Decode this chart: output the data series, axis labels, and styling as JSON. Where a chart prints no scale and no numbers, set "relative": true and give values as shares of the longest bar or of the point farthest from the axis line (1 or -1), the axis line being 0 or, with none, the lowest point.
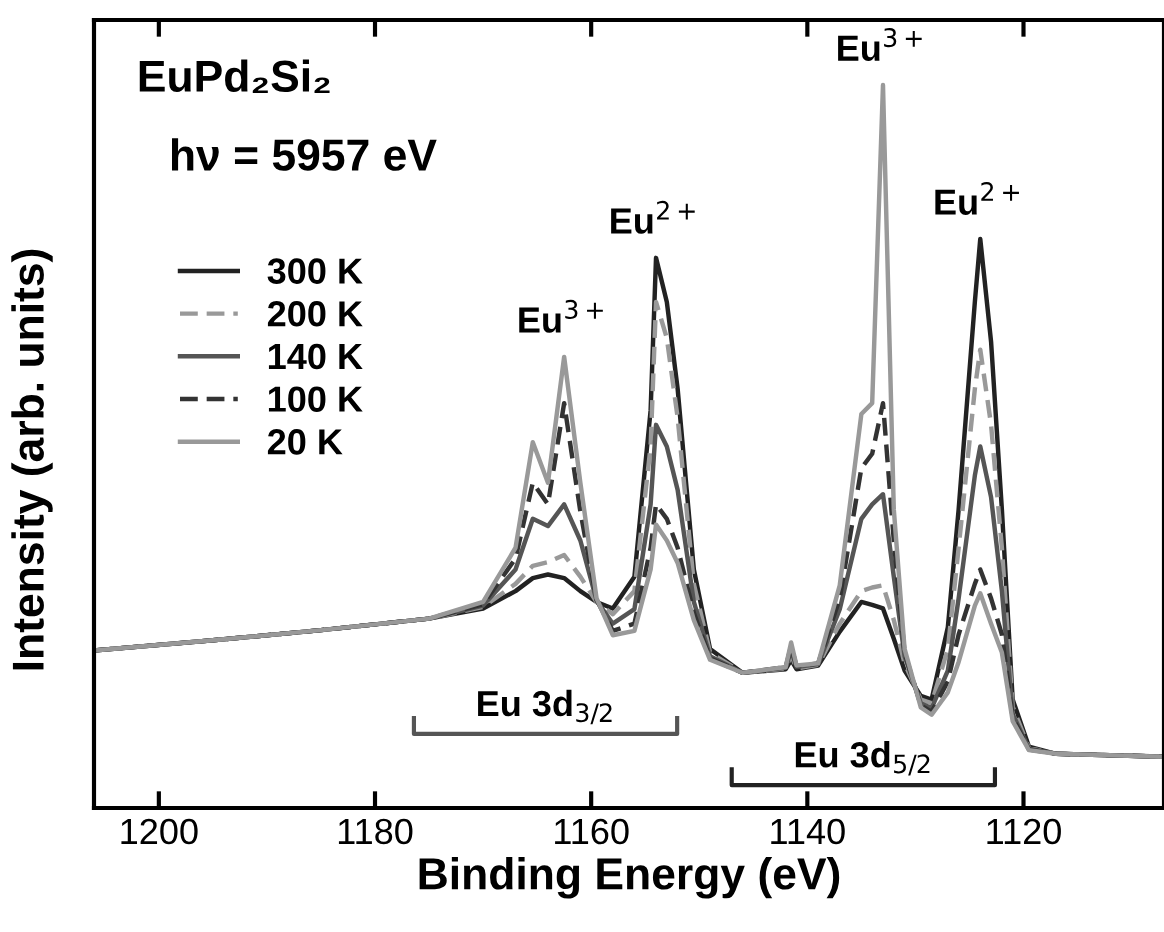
{
  "chart_data": {
    "type": "line",
    "title": "EuPd₂Si₂",
    "subtitle": "hν = 5957 eV",
    "xlabel": "Binding Energy (eV)",
    "ylabel": "Intensity (arb. units)",
    "relative": true,
    "xlim": [
      1206,
      1107
    ],
    "xticks": [
      1200,
      1180,
      1160,
      1140,
      1120
    ],
    "grid": false,
    "legend": "top left",
    "marker": "none",
    "x": [
      1206,
      1195,
      1185,
      1175,
      1170,
      1167,
      1165.4,
      1164,
      1162.5,
      1161,
      1159.5,
      1158,
      1156,
      1154.5,
      1154,
      1153,
      1152,
      1150.5,
      1149,
      1146,
      1142,
      1141.5,
      1141,
      1139,
      1137,
      1135,
      1134,
      1133,
      1132,
      1131,
      1129.5,
      1128.5,
      1127,
      1126,
      1124.5,
      1124,
      1123,
      1122,
      1121,
      1119.5,
      1117,
      1112,
      1107
    ],
    "series": [
      {
        "name": "300 K",
        "color": "#222222",
        "line_style": "solid",
        "values": [
          0.218,
          0.232,
          0.246,
          0.262,
          0.276,
          0.3,
          0.318,
          0.323,
          0.318,
          0.3,
          0.285,
          0.276,
          0.32,
          0.55,
          0.761,
          0.7,
          0.58,
          0.33,
          0.22,
          0.187,
          0.192,
          0.205,
          0.192,
          0.197,
          0.244,
          0.285,
          0.281,
          0.276,
          0.234,
          0.19,
          0.155,
          0.15,
          0.25,
          0.413,
          0.7,
          0.787,
          0.645,
          0.413,
          0.15,
          0.085,
          0.075,
          0.073,
          0.071
        ]
      },
      {
        "name": "200 K",
        "color": "#999999",
        "line_style": "dashed",
        "values": [
          0.218,
          0.232,
          0.246,
          0.262,
          0.278,
          0.31,
          0.335,
          0.34,
          0.35,
          0.32,
          0.285,
          0.268,
          0.3,
          0.5,
          0.7,
          0.65,
          0.54,
          0.31,
          0.215,
          0.187,
          0.193,
          0.212,
          0.193,
          0.198,
          0.255,
          0.3,
          0.305,
          0.308,
          0.26,
          0.2,
          0.15,
          0.145,
          0.22,
          0.36,
          0.58,
          0.634,
          0.53,
          0.36,
          0.14,
          0.083,
          0.075,
          0.073,
          0.071
        ]
      },
      {
        "name": "140 K",
        "color": "#555555",
        "line_style": "solid",
        "values": [
          0.218,
          0.232,
          0.246,
          0.262,
          0.28,
          0.33,
          0.4,
          0.39,
          0.42,
          0.37,
          0.287,
          0.255,
          0.275,
          0.42,
          0.53,
          0.5,
          0.44,
          0.285,
          0.21,
          0.187,
          0.194,
          0.218,
          0.195,
          0.199,
          0.275,
          0.4,
          0.42,
          0.434,
          0.32,
          0.21,
          0.145,
          0.138,
          0.19,
          0.29,
          0.46,
          0.5,
          0.43,
          0.3,
          0.13,
          0.082,
          0.075,
          0.073,
          0.071
        ]
      },
      {
        "name": "100 K",
        "color": "#333333",
        "line_style": "dashed",
        "values": [
          0.218,
          0.232,
          0.246,
          0.262,
          0.282,
          0.345,
          0.45,
          0.42,
          0.56,
          0.41,
          0.288,
          0.245,
          0.255,
          0.36,
          0.42,
          0.4,
          0.36,
          0.27,
          0.207,
          0.187,
          0.195,
          0.224,
          0.196,
          0.2,
          0.29,
          0.47,
          0.49,
          0.56,
          0.37,
          0.215,
          0.142,
          0.133,
          0.175,
          0.24,
          0.31,
          0.33,
          0.29,
          0.24,
          0.125,
          0.081,
          0.075,
          0.073,
          0.071
        ]
      },
      {
        "name": "20 K",
        "color": "#999999",
        "line_style": "solid",
        "values": [
          0.218,
          0.232,
          0.246,
          0.262,
          0.285,
          0.36,
          0.506,
          0.45,
          0.624,
          0.45,
          0.29,
          0.239,
          0.245,
          0.33,
          0.392,
          0.37,
          0.339,
          0.26,
          0.205,
          0.187,
          0.195,
          0.229,
          0.197,
          0.2,
          0.308,
          0.545,
          0.56,
          1.0,
          0.413,
          0.22,
          0.139,
          0.129,
          0.16,
          0.202,
          0.28,
          0.297,
          0.255,
          0.215,
          0.12,
          0.08,
          0.075,
          0.073,
          0.071
        ]
      }
    ],
    "annotations": [
      {
        "text": "Eu$^{3+}$",
        "x": 1162.5,
        "y": 0.624
      },
      {
        "text": "Eu$^{2+}$",
        "x": 1154,
        "y": 0.761
      },
      {
        "text": "Eu$^{3+}$",
        "x": 1133,
        "y": 1.0
      },
      {
        "text": "Eu$^{2+}$",
        "x": 1124,
        "y": 0.787
      },
      "Eu 3d$_{3/2}$",
      "Eu 3d$_{5/2}$"
    ]
  }
}
